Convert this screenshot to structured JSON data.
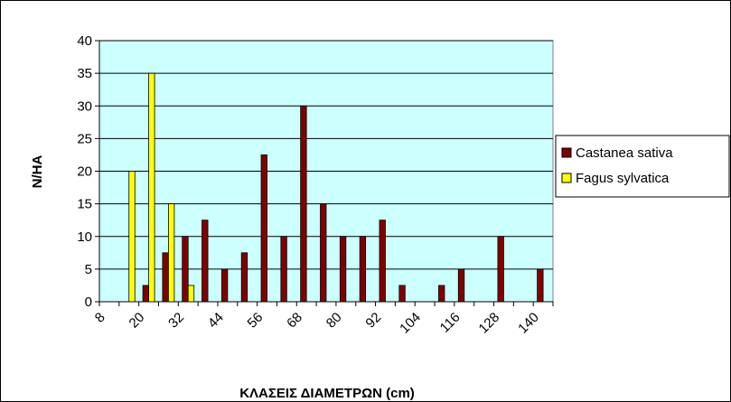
{
  "chart_data": {
    "type": "bar",
    "x_label": "ΚΛΑΣΕΙΣ ΔΙΑΜΕΤΡΩΝ (cm)",
    "y_label": "N/HA",
    "categories": [
      8,
      null,
      20,
      null,
      32,
      null,
      44,
      null,
      56,
      null,
      68,
      null,
      80,
      null,
      92,
      null,
      104,
      null,
      116,
      null,
      128,
      null,
      140
    ],
    "series": [
      {
        "name": "Castanea sativa",
        "color": "#800000",
        "values": [
          0,
          0,
          2.5,
          7.5,
          10,
          12.5,
          5,
          7.5,
          22.5,
          10,
          30,
          15,
          10,
          10,
          12.5,
          2.5,
          0,
          2.5,
          5,
          0,
          10,
          0,
          5
        ]
      },
      {
        "name": "Fagus sylvatica",
        "color": "#ffff00",
        "values": [
          0,
          20,
          35,
          15,
          2.5,
          0,
          0,
          0,
          0,
          0,
          0,
          0,
          0,
          0,
          0,
          0,
          0,
          0,
          0,
          0,
          0,
          0,
          0
        ]
      }
    ],
    "ylim": [
      0,
      40
    ],
    "yticks": [
      0,
      5,
      10,
      15,
      20,
      25,
      30,
      35,
      40
    ],
    "grid": true,
    "plot_background": "#ccffff",
    "legend": "right"
  }
}
